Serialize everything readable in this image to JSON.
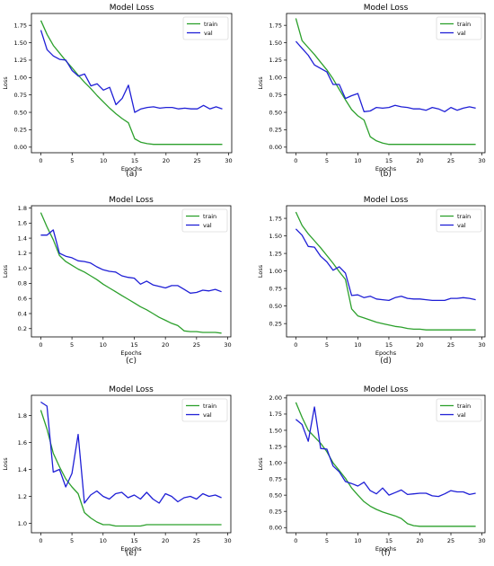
{
  "colors": {
    "train": "#2ca02c",
    "val": "#1f1fd6",
    "axis": "#000000"
  },
  "chart_data": [
    {
      "type": "line",
      "title": "Model Loss",
      "xlabel": "Epochs",
      "ylabel": "Loss",
      "caption": "(a)",
      "xlim": [
        -1.5,
        30.5
      ],
      "ylim": [
        -0.08,
        1.92
      ],
      "xticks": [
        0,
        5,
        10,
        15,
        20,
        25,
        30
      ],
      "yticks": [
        0.0,
        0.25,
        0.5,
        0.75,
        1.0,
        1.25,
        1.5,
        1.75
      ],
      "ytick_labels": [
        "0.00",
        "0.25",
        "0.50",
        "0.75",
        "1.00",
        "1.25",
        "1.50",
        "1.75"
      ],
      "legend": "top-right",
      "series": [
        {
          "name": "train",
          "color_key": "train",
          "values": [
            1.82,
            1.62,
            1.46,
            1.35,
            1.24,
            1.14,
            1.03,
            0.93,
            0.84,
            0.74,
            0.65,
            0.56,
            0.48,
            0.41,
            0.35,
            0.12,
            0.07,
            0.05,
            0.04,
            0.04,
            0.04,
            0.04,
            0.04,
            0.04,
            0.04,
            0.04,
            0.04,
            0.04,
            0.04,
            0.04
          ]
        },
        {
          "name": "val",
          "color_key": "val",
          "values": [
            1.68,
            1.4,
            1.31,
            1.26,
            1.25,
            1.1,
            1.02,
            1.05,
            0.88,
            0.91,
            0.82,
            0.86,
            0.61,
            0.7,
            0.89,
            0.5,
            0.55,
            0.57,
            0.58,
            0.56,
            0.57,
            0.57,
            0.55,
            0.56,
            0.55,
            0.55,
            0.6,
            0.55,
            0.58,
            0.55
          ]
        }
      ]
    },
    {
      "type": "line",
      "title": "Model Loss",
      "xlabel": "Epochs",
      "ylabel": "Loss",
      "caption": "(b)",
      "xlim": [
        -1.5,
        30.5
      ],
      "ylim": [
        -0.08,
        1.92
      ],
      "xticks": [
        0,
        5,
        10,
        15,
        20,
        25,
        30
      ],
      "yticks": [
        0.0,
        0.25,
        0.5,
        0.75,
        1.0,
        1.25,
        1.5,
        1.75
      ],
      "ytick_labels": [
        "0.00",
        "0.25",
        "0.50",
        "0.75",
        "1.00",
        "1.25",
        "1.50",
        "1.75"
      ],
      "legend": "top-right",
      "series": [
        {
          "name": "train",
          "color_key": "train",
          "values": [
            1.85,
            1.53,
            1.43,
            1.33,
            1.22,
            1.11,
            0.98,
            0.83,
            0.68,
            0.54,
            0.45,
            0.39,
            0.15,
            0.09,
            0.06,
            0.04,
            0.04,
            0.04,
            0.04,
            0.04,
            0.04,
            0.04,
            0.04,
            0.04,
            0.04,
            0.04,
            0.04,
            0.04,
            0.04,
            0.04
          ]
        },
        {
          "name": "val",
          "color_key": "val",
          "values": [
            1.52,
            1.42,
            1.32,
            1.18,
            1.13,
            1.08,
            0.9,
            0.9,
            0.7,
            0.74,
            0.77,
            0.51,
            0.52,
            0.57,
            0.56,
            0.57,
            0.6,
            0.58,
            0.57,
            0.55,
            0.55,
            0.53,
            0.57,
            0.55,
            0.51,
            0.57,
            0.53,
            0.56,
            0.58,
            0.56
          ]
        }
      ]
    },
    {
      "type": "line",
      "title": "Model Loss",
      "xlabel": "Epochs",
      "ylabel": "Loss",
      "caption": "(c)",
      "xlim": [
        -1.5,
        30.5
      ],
      "ylim": [
        0.09,
        1.83
      ],
      "xticks": [
        0,
        5,
        10,
        15,
        20,
        25,
        30
      ],
      "yticks": [
        0.2,
        0.4,
        0.6,
        0.8,
        1.0,
        1.2,
        1.4,
        1.6,
        1.8
      ],
      "ytick_labels": [
        "0.2",
        "0.4",
        "0.6",
        "0.8",
        "1.0",
        "1.2",
        "1.4",
        "1.6",
        "1.8"
      ],
      "legend": "top-right",
      "series": [
        {
          "name": "train",
          "color_key": "train",
          "values": [
            1.74,
            1.55,
            1.38,
            1.17,
            1.09,
            1.04,
            0.99,
            0.95,
            0.9,
            0.85,
            0.79,
            0.74,
            0.69,
            0.64,
            0.59,
            0.54,
            0.49,
            0.45,
            0.4,
            0.35,
            0.31,
            0.27,
            0.24,
            0.17,
            0.16,
            0.16,
            0.15,
            0.15,
            0.15,
            0.14
          ]
        },
        {
          "name": "val",
          "color_key": "val",
          "values": [
            1.44,
            1.44,
            1.51,
            1.2,
            1.16,
            1.14,
            1.1,
            1.09,
            1.07,
            1.02,
            0.98,
            0.96,
            0.95,
            0.9,
            0.88,
            0.87,
            0.79,
            0.83,
            0.78,
            0.76,
            0.74,
            0.77,
            0.77,
            0.72,
            0.67,
            0.68,
            0.71,
            0.7,
            0.72,
            0.69
          ]
        }
      ]
    },
    {
      "type": "line",
      "title": "Model Loss",
      "xlabel": "Epochs",
      "ylabel": "Loss",
      "caption": "(d)",
      "xlim": [
        -1.5,
        30.5
      ],
      "ylim": [
        0.06,
        1.93
      ],
      "xticks": [
        0,
        5,
        10,
        15,
        20,
        25,
        30
      ],
      "yticks": [
        0.25,
        0.5,
        0.75,
        1.0,
        1.25,
        1.5,
        1.75
      ],
      "ytick_labels": [
        "0.25",
        "0.50",
        "0.75",
        "1.00",
        "1.25",
        "1.50",
        "1.75"
      ],
      "legend": "top-right",
      "series": [
        {
          "name": "train",
          "color_key": "train",
          "values": [
            1.84,
            1.65,
            1.53,
            1.43,
            1.33,
            1.22,
            1.11,
            0.99,
            0.88,
            0.46,
            0.36,
            0.33,
            0.3,
            0.27,
            0.25,
            0.23,
            0.21,
            0.2,
            0.18,
            0.17,
            0.17,
            0.16,
            0.16,
            0.16,
            0.16,
            0.16,
            0.16,
            0.16,
            0.16,
            0.16
          ]
        },
        {
          "name": "val",
          "color_key": "val",
          "values": [
            1.6,
            1.51,
            1.35,
            1.34,
            1.21,
            1.13,
            1.01,
            1.06,
            0.97,
            0.65,
            0.66,
            0.62,
            0.64,
            0.6,
            0.59,
            0.58,
            0.62,
            0.64,
            0.61,
            0.6,
            0.6,
            0.59,
            0.58,
            0.58,
            0.58,
            0.61,
            0.61,
            0.62,
            0.61,
            0.59
          ]
        }
      ]
    },
    {
      "type": "line",
      "title": "Model Loss",
      "xlabel": "Epochs",
      "ylabel": "Loss",
      "caption": "(e)",
      "xlim": [
        -1.5,
        30.5
      ],
      "ylim": [
        0.93,
        1.95
      ],
      "xticks": [
        0,
        5,
        10,
        15,
        20,
        25,
        30
      ],
      "yticks": [
        1.0,
        1.2,
        1.4,
        1.6,
        1.8
      ],
      "ytick_labels": [
        "1.0",
        "1.2",
        "1.4",
        "1.6",
        "1.8"
      ],
      "legend": "top-right",
      "series": [
        {
          "name": "train",
          "color_key": "train",
          "values": [
            1.84,
            1.7,
            1.52,
            1.42,
            1.33,
            1.27,
            1.22,
            1.08,
            1.04,
            1.01,
            0.99,
            0.99,
            0.98,
            0.98,
            0.98,
            0.98,
            0.98,
            0.99,
            0.99,
            0.99,
            0.99,
            0.99,
            0.99,
            0.99,
            0.99,
            0.99,
            0.99,
            0.99,
            0.99,
            0.99
          ]
        },
        {
          "name": "val",
          "color_key": "val",
          "values": [
            1.9,
            1.87,
            1.38,
            1.4,
            1.27,
            1.37,
            1.66,
            1.15,
            1.21,
            1.24,
            1.2,
            1.18,
            1.22,
            1.23,
            1.19,
            1.21,
            1.18,
            1.23,
            1.18,
            1.15,
            1.22,
            1.2,
            1.16,
            1.19,
            1.2,
            1.18,
            1.22,
            1.2,
            1.21,
            1.19
          ]
        }
      ]
    },
    {
      "type": "line",
      "title": "Model Loss",
      "xlabel": "Epochs",
      "ylabel": "Loss",
      "caption": "(f)",
      "xlim": [
        -1.5,
        30.5
      ],
      "ylim": [
        -0.08,
        2.04
      ],
      "xticks": [
        0,
        5,
        10,
        15,
        20,
        25,
        30
      ],
      "yticks": [
        0.0,
        0.25,
        0.5,
        0.75,
        1.0,
        1.25,
        1.5,
        1.75,
        2.0
      ],
      "ytick_labels": [
        "0.00",
        "0.25",
        "0.50",
        "0.75",
        "1.00",
        "1.25",
        "1.50",
        "1.75",
        "2.00"
      ],
      "legend": "top-right",
      "series": [
        {
          "name": "train",
          "color_key": "train",
          "values": [
            1.93,
            1.7,
            1.5,
            1.4,
            1.3,
            1.17,
            1.0,
            0.88,
            0.76,
            0.61,
            0.5,
            0.4,
            0.33,
            0.28,
            0.24,
            0.21,
            0.18,
            0.14,
            0.06,
            0.03,
            0.02,
            0.02,
            0.02,
            0.02,
            0.02,
            0.02,
            0.02,
            0.02,
            0.02,
            0.02
          ]
        },
        {
          "name": "val",
          "color_key": "val",
          "values": [
            1.67,
            1.59,
            1.33,
            1.86,
            1.22,
            1.21,
            0.95,
            0.86,
            0.71,
            0.68,
            0.64,
            0.7,
            0.57,
            0.52,
            0.61,
            0.5,
            0.54,
            0.58,
            0.51,
            0.52,
            0.53,
            0.53,
            0.49,
            0.48,
            0.52,
            0.57,
            0.55,
            0.55,
            0.51,
            0.53
          ]
        }
      ]
    }
  ]
}
